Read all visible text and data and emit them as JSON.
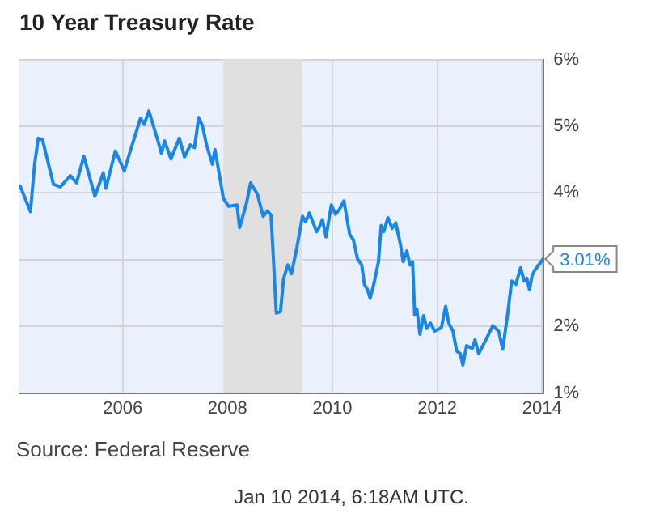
{
  "chart_data": {
    "type": "line",
    "title": "10 Year Treasury Rate",
    "x": [
      2004.03,
      2004.05,
      2004.24,
      2004.32,
      2004.39,
      2004.47,
      2004.56,
      2004.68,
      2004.81,
      2005.0,
      2005.12,
      2005.26,
      2005.47,
      2005.63,
      2005.68,
      2005.86,
      2006.03,
      2006.13,
      2006.34,
      2006.41,
      2006.5,
      2006.68,
      2006.74,
      2006.8,
      2006.92,
      2007.08,
      2007.18,
      2007.29,
      2007.37,
      2007.45,
      2007.52,
      2007.6,
      2007.71,
      2007.76,
      2007.83,
      2007.92,
      2008.02,
      2008.18,
      2008.23,
      2008.36,
      2008.44,
      2008.57,
      2008.68,
      2008.76,
      2008.83,
      2008.93,
      2009.01,
      2009.07,
      2009.15,
      2009.22,
      2009.32,
      2009.43,
      2009.49,
      2009.56,
      2009.7,
      2009.74,
      2009.81,
      2009.88,
      2009.98,
      2010.06,
      2010.14,
      2010.22,
      2010.33,
      2010.4,
      2010.48,
      2010.56,
      2010.61,
      2010.67,
      2010.72,
      2010.79,
      2010.88,
      2010.93,
      2010.98,
      2011.06,
      2011.14,
      2011.21,
      2011.3,
      2011.35,
      2011.42,
      2011.48,
      2011.53,
      2011.57,
      2011.61,
      2011.67,
      2011.74,
      2011.8,
      2011.87,
      2011.95,
      2012.08,
      2012.16,
      2012.22,
      2012.3,
      2012.37,
      2012.44,
      2012.49,
      2012.56,
      2012.67,
      2012.72,
      2012.79,
      2012.93,
      2013.06,
      2013.17,
      2013.25,
      2013.35,
      2013.42,
      2013.5,
      2013.59,
      2013.66,
      2013.71,
      2013.76,
      2013.81,
      2013.86,
      2014.02
    ],
    "series": [
      {
        "color": "#1a86e6",
        "values": [
          4.1,
          4.09,
          3.72,
          4.43,
          4.82,
          4.8,
          4.51,
          4.13,
          4.09,
          4.26,
          4.15,
          4.55,
          3.95,
          4.3,
          4.07,
          4.63,
          4.33,
          4.59,
          5.12,
          5.03,
          5.23,
          4.76,
          4.59,
          4.78,
          4.51,
          4.82,
          4.54,
          4.72,
          4.68,
          5.13,
          5.01,
          4.72,
          4.43,
          4.65,
          4.34,
          3.92,
          3.8,
          3.82,
          3.48,
          3.84,
          4.15,
          3.98,
          3.65,
          3.73,
          3.67,
          2.2,
          2.22,
          2.72,
          2.92,
          2.79,
          3.17,
          3.65,
          3.57,
          3.7,
          3.42,
          3.47,
          3.6,
          3.34,
          3.82,
          3.68,
          3.76,
          3.88,
          3.38,
          3.3,
          3.01,
          2.92,
          2.63,
          2.55,
          2.42,
          2.63,
          2.97,
          3.51,
          3.42,
          3.63,
          3.47,
          3.55,
          3.22,
          2.97,
          3.13,
          2.92,
          2.97,
          2.17,
          2.26,
          1.88,
          2.16,
          1.97,
          2.05,
          1.93,
          1.98,
          2.3,
          2.05,
          1.93,
          1.63,
          1.59,
          1.42,
          1.71,
          1.67,
          1.8,
          1.59,
          1.8,
          2.01,
          1.93,
          1.66,
          2.22,
          2.68,
          2.63,
          2.88,
          2.68,
          2.72,
          2.55,
          2.76,
          2.84,
          3.01
        ]
      }
    ],
    "xlim": [
      2004.03,
      2014.03
    ],
    "xticks": [
      2006,
      2008,
      2010,
      2012,
      2014
    ],
    "ylim": [
      1,
      6
    ],
    "yticks": [
      {
        "value": 1,
        "label": "1%"
      },
      {
        "value": 2,
        "label": "2%"
      },
      {
        "value": 3,
        "label": null
      },
      {
        "value": 4,
        "label": "4%"
      },
      {
        "value": 5,
        "label": "5%"
      },
      {
        "value": 6,
        "label": "6%"
      }
    ],
    "grid": true,
    "legend": false,
    "marker": "none",
    "line_style": "solid",
    "bands": [
      {
        "axis": "x",
        "from": 2007.92,
        "to": 2009.42,
        "color": "#e0e0e0"
      }
    ],
    "annotations": [
      {
        "text": "3.01%",
        "x": 2014.03,
        "y": 3.01
      },
      "Source: Federal Reserve",
      "Jan 10 2014, 6:18AM UTC."
    ]
  }
}
